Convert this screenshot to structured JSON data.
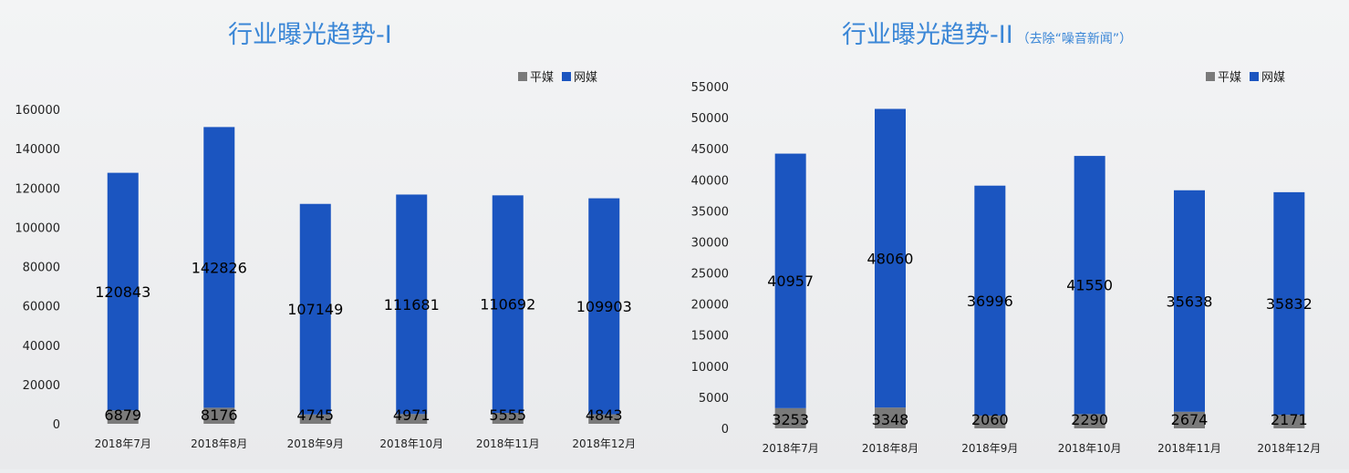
{
  "chart_data": [
    {
      "type": "bar",
      "stacked": true,
      "title": "行业曝光趋势-I",
      "subtitle": "",
      "categories": [
        "2018年7月",
        "2018年8月",
        "2018年9月",
        "2018年10月",
        "2018年11月",
        "2018年12月"
      ],
      "series": [
        {
          "name": "平媒",
          "color": "#7a7a7a",
          "values": [
            6879,
            8176,
            4745,
            4971,
            5555,
            4843
          ]
        },
        {
          "name": "网媒",
          "color": "#1b55c0",
          "values": [
            120843,
            142826,
            107149,
            111681,
            110692,
            109903
          ]
        }
      ],
      "ylim": [
        0,
        160000
      ],
      "yticks": [
        0,
        20000,
        40000,
        60000,
        80000,
        100000,
        120000,
        140000,
        160000
      ],
      "legend": "top-right",
      "grid": false,
      "xlabel": "",
      "ylabel": ""
    },
    {
      "type": "bar",
      "stacked": true,
      "title": "行业曝光趋势-II",
      "subtitle": "（去除“噪音新闻”）",
      "categories": [
        "2018年7月",
        "2018年8月",
        "2018年9月",
        "2018年10月",
        "2018年11月",
        "2018年12月"
      ],
      "series": [
        {
          "name": "平媒",
          "color": "#7a7a7a",
          "values": [
            3253,
            3348,
            2060,
            2290,
            2674,
            2171
          ]
        },
        {
          "name": "网媒",
          "color": "#1b55c0",
          "values": [
            40957,
            48060,
            36996,
            41550,
            35638,
            35832
          ]
        }
      ],
      "ylim": [
        0,
        55000
      ],
      "yticks": [
        0,
        5000,
        10000,
        15000,
        20000,
        25000,
        30000,
        35000,
        40000,
        45000,
        50000,
        55000
      ],
      "legend": "top-right",
      "grid": false,
      "xlabel": "",
      "ylabel": ""
    }
  ]
}
